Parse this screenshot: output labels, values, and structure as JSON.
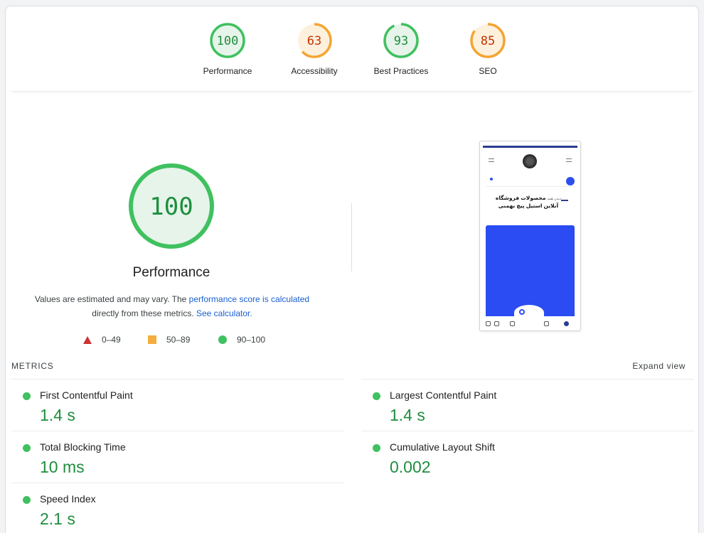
{
  "gauges": [
    {
      "label": "Performance",
      "score": "100",
      "value": 100,
      "color": "#3fc15f",
      "track": "#e6f4ea"
    },
    {
      "label": "Accessibility",
      "score": "63",
      "value": 63,
      "color": "#f4a533",
      "track": "#fdf1de"
    },
    {
      "label": "Best Practices",
      "score": "93",
      "value": 93,
      "color": "#3fc15f",
      "track": "#e6f4ea"
    },
    {
      "label": "SEO",
      "score": "85",
      "value": 85,
      "color": "#f4a533",
      "track": "#fdf1de"
    }
  ],
  "performance": {
    "score": "100",
    "value": 100,
    "title": "Performance",
    "desc_pre": "Values are estimated and may vary. The ",
    "desc_link1": "performance score is calculated",
    "desc_mid": "directly from these metrics. ",
    "desc_link2": "See calculator.",
    "color": "#3fc15f",
    "track": "#e6f4ea",
    "text_color": "#1e8e3e"
  },
  "legend": [
    {
      "shape": "triangle",
      "range": "0–49",
      "color": "#cc3333"
    },
    {
      "shape": "square",
      "range": "50–89",
      "color": "#f4ae3d"
    },
    {
      "shape": "circle",
      "range": "90–100",
      "color": "#3fc15f"
    }
  ],
  "screenshot": {
    "heading_line1": "محصولات فروشگاه",
    "heading_line2": "آنلاین استیل پیچ بهمنی",
    "heading_prefix": "دیدن همه"
  },
  "metrics": {
    "section_label": "METRICS",
    "expand_label": "Expand view",
    "items": [
      {
        "name": "First Contentful Paint",
        "value": "1.4 s"
      },
      {
        "name": "Largest Contentful Paint",
        "value": "1.4 s"
      },
      {
        "name": "Total Blocking Time",
        "value": "10 ms"
      },
      {
        "name": "Cumulative Layout Shift",
        "value": "0.002"
      },
      {
        "name": "Speed Index",
        "value": "2.1 s"
      }
    ]
  }
}
